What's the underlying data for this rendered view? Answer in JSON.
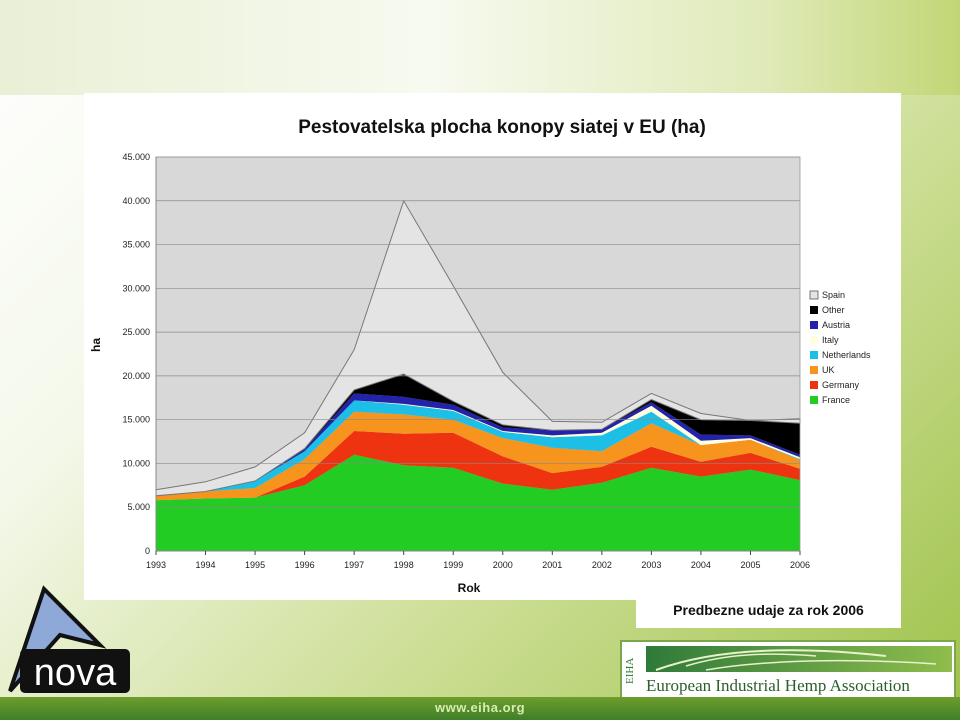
{
  "slide": {
    "note": "Predbezne udaje za rok 2006",
    "url": "www.eiha.org",
    "nova_logo_text": "nova",
    "eiha_vertical": "EIHA",
    "eiha_name": "European Industrial Hemp Association"
  },
  "colors": {
    "France": "#22cc22",
    "Germany": "#ee3311",
    "UK": "#f7941d",
    "Netherlands": "#1ebfe6",
    "Italy": "#ffffe0",
    "Austria": "#2222aa",
    "Other": "#000000",
    "Spain": "#e4e4e4"
  },
  "chart_data": {
    "type": "area",
    "stacked": true,
    "title": "Pestovatelska plocha konopy siatej v EU (ha)",
    "xlabel": "Rok",
    "ylabel": "ha",
    "ylim": [
      0,
      45000
    ],
    "yticks": [
      "0",
      "5.000",
      "10.000",
      "15.000",
      "20.000",
      "25.000",
      "30.000",
      "35.000",
      "40.000",
      "45.000"
    ],
    "grid": true,
    "legend_position": "right",
    "categories": [
      "1993",
      "1994",
      "1995",
      "1996",
      "1997",
      "1998",
      "1999",
      "2000",
      "2001",
      "2002",
      "2003",
      "2004",
      "2005",
      "2006"
    ],
    "series": [
      {
        "name": "France",
        "values": [
          5800,
          6000,
          6100,
          7500,
          11000,
          9800,
          9500,
          7700,
          7000,
          7800,
          9500,
          8500,
          9300,
          8100
        ]
      },
      {
        "name": "Germany",
        "values": [
          0,
          0,
          0,
          1000,
          2700,
          3600,
          4000,
          3100,
          1900,
          1800,
          2400,
          1700,
          1900,
          1300
        ]
      },
      {
        "name": "UK",
        "values": [
          500,
          800,
          1100,
          2000,
          2200,
          2200,
          1500,
          2100,
          2900,
          1800,
          2700,
          1900,
          1500,
          1000
        ]
      },
      {
        "name": "Netherlands",
        "values": [
          0,
          0,
          800,
          900,
          1300,
          1100,
          1000,
          700,
          1200,
          1800,
          1300,
          0,
          0,
          100
        ]
      },
      {
        "name": "Italy",
        "values": [
          0,
          0,
          0,
          0,
          0,
          100,
          100,
          100,
          200,
          300,
          700,
          500,
          200,
          200
        ]
      },
      {
        "name": "Austria",
        "values": [
          0,
          0,
          0,
          200,
          800,
          800,
          600,
          400,
          600,
          400,
          400,
          700,
          300,
          300
        ]
      },
      {
        "name": "Other",
        "values": [
          0,
          0,
          0,
          100,
          400,
          2600,
          400,
          300,
          0,
          0,
          300,
          1700,
          1700,
          3600
        ]
      },
      {
        "name": "Spain",
        "values": [
          700,
          1100,
          1600,
          1800,
          4600,
          19800,
          13200,
          6000,
          1000,
          800,
          700,
          700,
          0,
          500
        ]
      }
    ]
  }
}
